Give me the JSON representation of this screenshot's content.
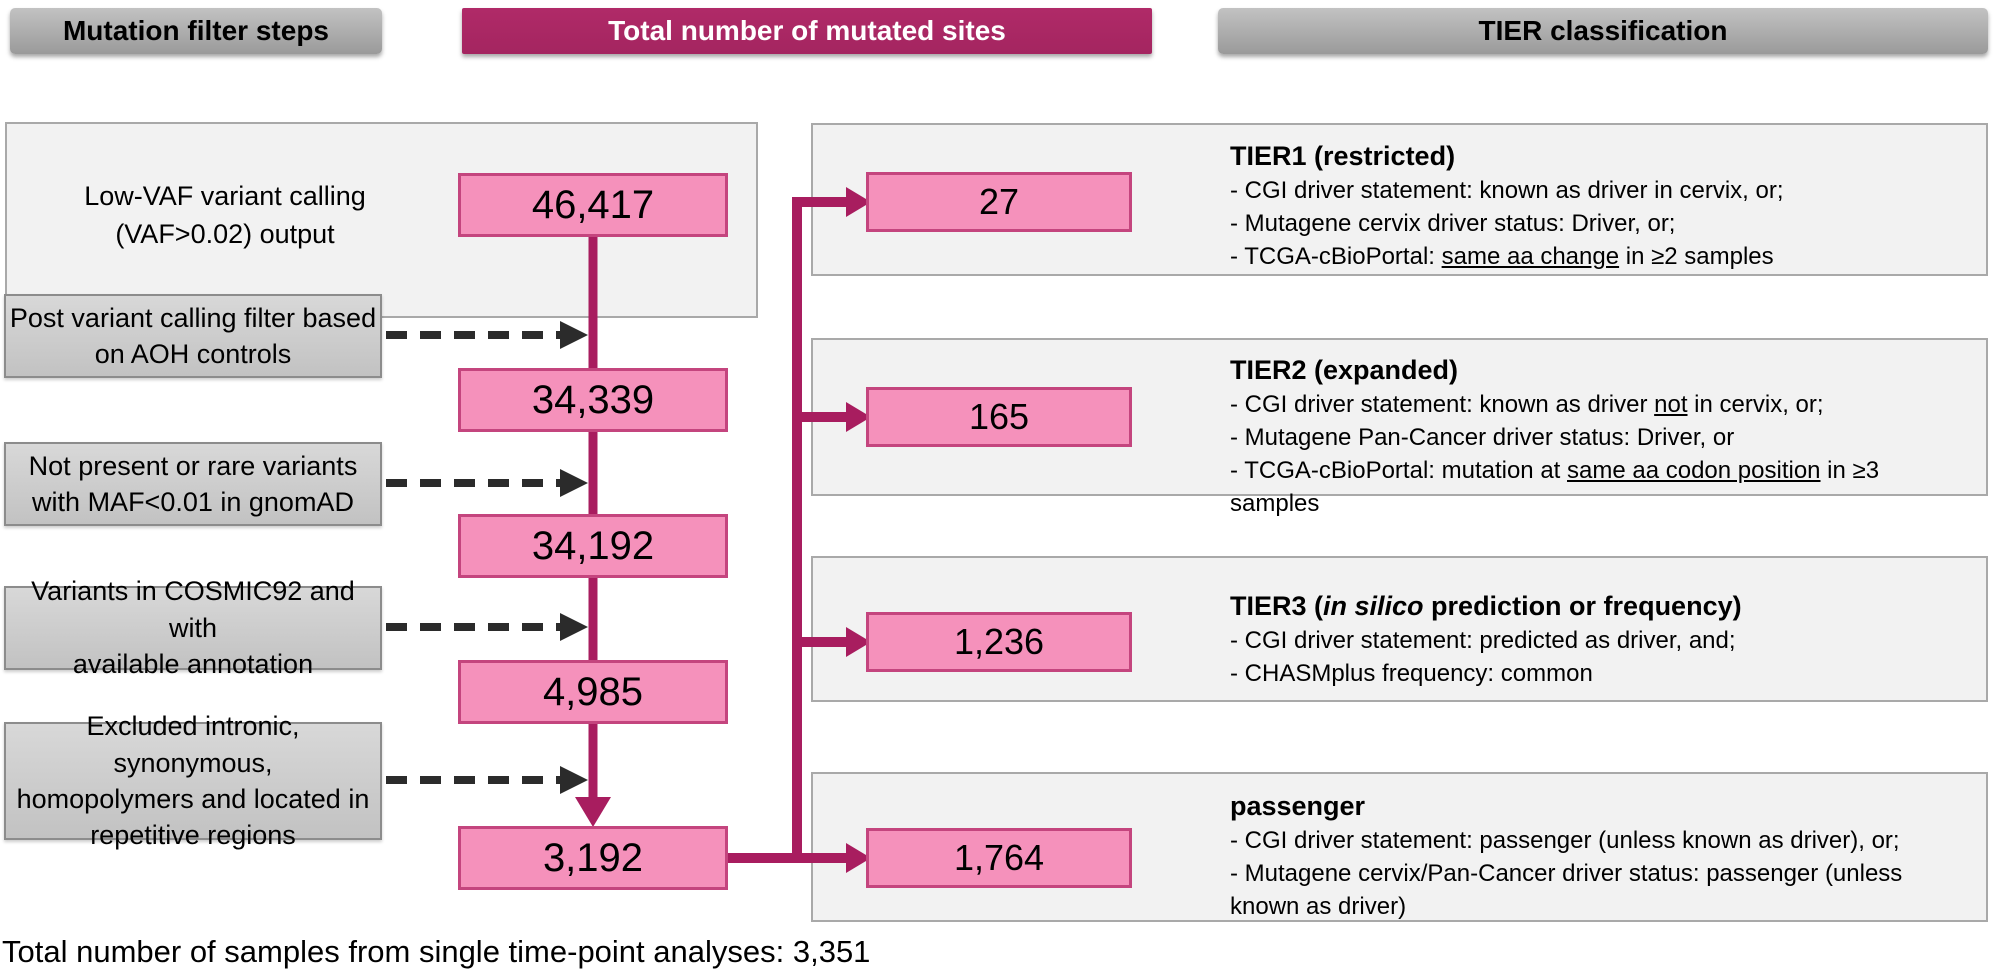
{
  "colors": {
    "accent_magenta": "#A81D5F",
    "header_magenta": "#A42560",
    "pink_fill": "#F591BB",
    "pink_border": "#C4457E",
    "panel_bg": "#F2F2F2",
    "panel_border": "#A9A9A9",
    "dash_black": "#2B2B2B"
  },
  "headers": {
    "left": "Mutation filter steps",
    "middle": "Total number of mutated sites",
    "right": "TIER classification"
  },
  "flow": {
    "source_label": "Low-VAF variant calling\n(VAF>0.02) output",
    "counts": [
      "46,417",
      "34,339",
      "34,192",
      "4,985",
      "3,192"
    ],
    "filters": [
      "Post variant calling filter based\non AOH controls",
      "Not present or rare variants\nwith MAF<0.01 in gnomAD",
      "Variants in COSMIC92 and with\navailable annotation",
      "Excluded intronic, synonymous,\nhomopolymers and located in\nrepetitive regions"
    ]
  },
  "tiers": [
    {
      "count": "27",
      "title": [
        {
          "t": "TIER1 (restricted)"
        }
      ],
      "bullets": [
        [
          {
            "t": "- CGI driver statement: known as driver in cervix, or;"
          }
        ],
        [
          {
            "t": "- Mutagene cervix driver status: Driver, or;"
          }
        ],
        [
          {
            "t": "- TCGA-cBioPortal: "
          },
          {
            "t": "same aa change",
            "u": true
          },
          {
            "t": " in ≥2 samples"
          }
        ]
      ]
    },
    {
      "count": "165",
      "title": [
        {
          "t": "TIER2 (expanded)"
        }
      ],
      "bullets": [
        [
          {
            "t": "- CGI driver statement: known as driver "
          },
          {
            "t": "not",
            "u": true
          },
          {
            "t": " in cervix, or;"
          }
        ],
        [
          {
            "t": "- Mutagene Pan-Cancer driver status: Driver, or"
          }
        ],
        [
          {
            "t": "- TCGA-cBioPortal: mutation at "
          },
          {
            "t": "same aa codon position",
            "u": true
          },
          {
            "t": " in ≥3 samples"
          }
        ]
      ]
    },
    {
      "count": "1,236",
      "title": [
        {
          "t": "TIER3 ("
        },
        {
          "t": "in silico",
          "i": true
        },
        {
          "t": " prediction or frequency)"
        }
      ],
      "bullets": [
        [
          {
            "t": "- CGI driver statement: predicted as driver, and;"
          }
        ],
        [
          {
            "t": "- CHASMplus frequency: common"
          }
        ]
      ]
    },
    {
      "count": "1,764",
      "title": [
        {
          "t": "passenger"
        }
      ],
      "bullets": [
        [
          {
            "t": "- CGI driver statement: passenger (unless known as driver), or;"
          }
        ],
        [
          {
            "t": "- Mutagene cervix/Pan-Cancer driver status: passenger (unless known as driver)"
          }
        ]
      ]
    }
  ],
  "caption": "Total number of samples from single time-point analyses: 3,351"
}
